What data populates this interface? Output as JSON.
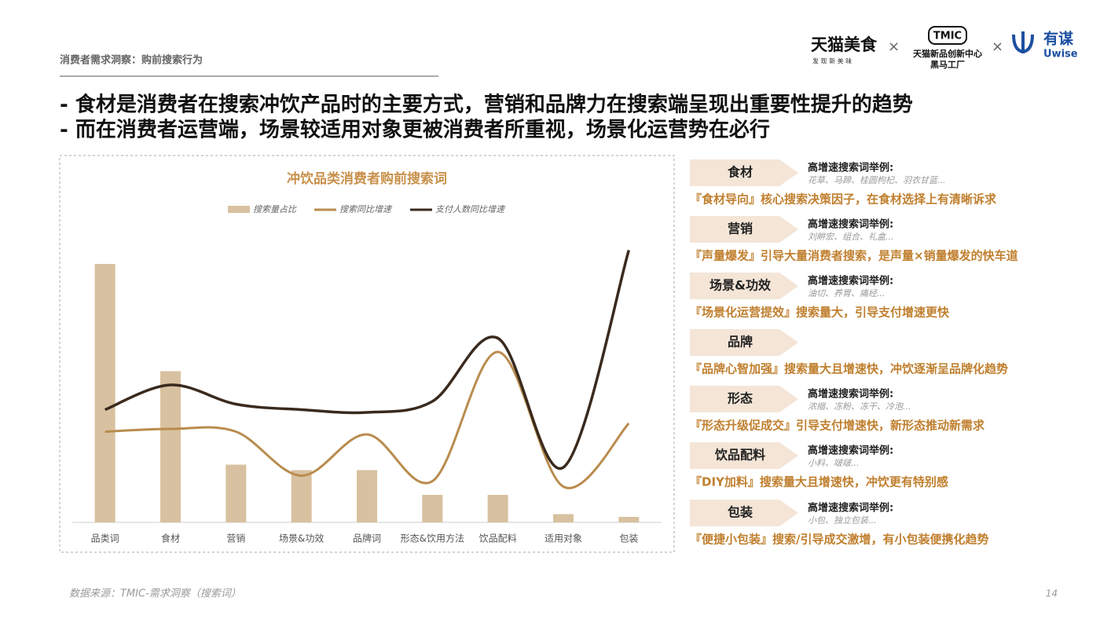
{
  "header": {
    "section": "消费者需求洞察：购前搜索行为",
    "logos": [
      "天猫美食",
      "发 现 新 美 味",
      "TMIC",
      "天猫新品创新中心",
      "黑马工厂",
      "有谋",
      "Uwise"
    ],
    "headlines": [
      "- 食材是消费者在搜索冲饮产品时的主要方式，营销和品牌力在搜索端呈现出重要性提升的趋势",
      "- 而在消费者运营端，场景较适用对象更被消费者所重视，场景化运营势在必行"
    ]
  },
  "chart_data": {
    "type": "bar-line",
    "title": "冲饮品类消费者购前搜索词",
    "categories": [
      "品类词",
      "食材",
      "营销",
      "场景&功效",
      "品牌词",
      "形态&饮用方法",
      "饮品配料",
      "适用对象",
      "包装"
    ],
    "ylim": [
      0,
      100
    ],
    "series": [
      {
        "name": "搜索量占比",
        "type": "bar",
        "color": "#d8c1a0",
        "values": [
          94,
          55,
          21,
          19,
          19,
          10,
          10,
          3,
          2
        ]
      },
      {
        "name": "搜索同比增速",
        "type": "line",
        "color": "#b98c4e",
        "values": [
          33,
          34,
          33,
          17,
          32,
          15,
          62,
          13,
          36
        ]
      },
      {
        "name": "支付人数同比增速",
        "type": "line",
        "color": "#3a2a1e",
        "values": [
          41,
          50,
          43,
          41,
          40,
          44,
          67,
          20,
          99
        ]
      }
    ]
  },
  "items": [
    {
      "label": "食材",
      "hint": "高增速搜索词举例:",
      "examples": "花草、马蹄、桂圆枸杞、羽衣甘蓝...",
      "desc": "『食材导向』核心搜索决策因子，在食材选择上有清晰诉求"
    },
    {
      "label": "营销",
      "hint": "高增速搜索词举例:",
      "examples": "刘畊宏、组合、礼盒...",
      "desc": "『声量爆发』引导大量消费者搜索，是声量×销量爆发的快车道"
    },
    {
      "label": "场景&功效",
      "hint": "高增速搜索词举例:",
      "examples": "油切、养胃、痛经...",
      "desc": "『场景化运营提效』搜索量大，引导支付增速更快"
    },
    {
      "label": "品牌",
      "desc": "『品牌心智加强』搜索量大且增速快，冲饮逐渐呈品牌化趋势"
    },
    {
      "label": "形态",
      "hint": "高增速搜索词举例:",
      "examples": "浓缩、冻粉、冻干、冷泡...",
      "desc": "『形态升级促成交』引导支付增速快，新形态推动新需求"
    },
    {
      "label": "饮品配料",
      "hint": "高增速搜索词举例:",
      "examples": "小料、啵啵...",
      "desc": "『DIY加料』搜索量大且增速快，冲饮更有特别感"
    },
    {
      "label": "包装",
      "hint": "高增速搜索词举例:",
      "examples": "小包、独立包装...",
      "desc": "『便捷小包装』搜索/引导成交激增，有小包装便携化趋势"
    }
  ],
  "footer": {
    "source": "数据来源：TMIC-需求洞察（搜索词）",
    "page": "14"
  }
}
